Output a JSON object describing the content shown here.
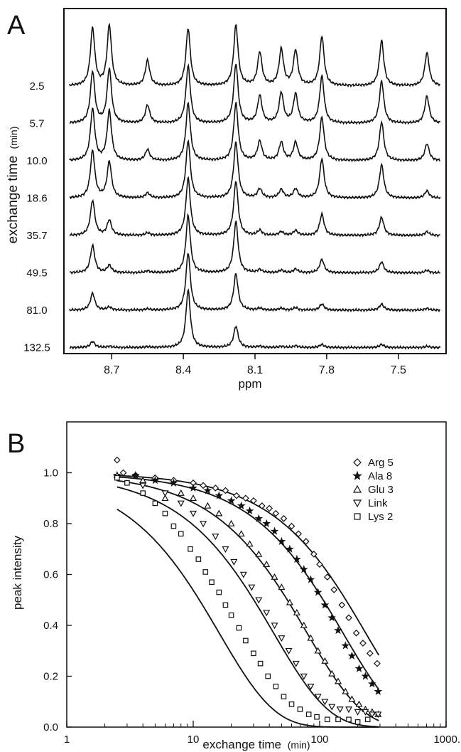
{
  "colors": {
    "ink": "#111111",
    "background": "#ffffff"
  },
  "chart_data": [
    {
      "panel_label": "A",
      "type": "line",
      "ylabel": "exchange time",
      "ylabel_unit": "(min)",
      "xlabel": "ppm",
      "x_reversed": true,
      "xlim": [
        8.9,
        7.3
      ],
      "xticks": [
        8.7,
        8.4,
        8.1,
        7.8,
        7.5
      ],
      "xtick_labels": [
        "8.7",
        "8.4",
        "8.1",
        "7.8",
        "7.5"
      ],
      "spectra_labels": [
        "2.5",
        "5.7",
        "10.0",
        "18.6",
        "35.7",
        "49.5",
        "81.0",
        "132.5"
      ],
      "peak_positions_ppm": [
        8.78,
        8.71,
        8.55,
        8.38,
        8.18,
        8.08,
        7.99,
        7.93,
        7.82,
        7.57,
        7.38
      ],
      "peak_heights": [
        [
          0.95,
          1.0,
          0.42,
          0.95,
          1.0,
          0.55,
          0.6,
          0.58,
          0.82,
          0.75,
          0.55
        ],
        [
          0.85,
          0.9,
          0.3,
          0.95,
          0.98,
          0.45,
          0.5,
          0.48,
          0.78,
          0.7,
          0.45
        ],
        [
          0.85,
          0.82,
          0.18,
          0.95,
          0.95,
          0.32,
          0.3,
          0.3,
          0.72,
          0.64,
          0.28
        ],
        [
          0.78,
          0.6,
          0.08,
          0.95,
          0.92,
          0.15,
          0.14,
          0.15,
          0.65,
          0.55,
          0.12
        ],
        [
          0.58,
          0.25,
          0.04,
          0.95,
          0.9,
          0.08,
          0.06,
          0.08,
          0.35,
          0.3,
          0.06
        ],
        [
          0.45,
          0.12,
          0.03,
          0.95,
          0.85,
          0.05,
          0.04,
          0.06,
          0.22,
          0.18,
          0.04
        ],
        [
          0.28,
          0.05,
          0.02,
          0.95,
          0.6,
          0.03,
          0.03,
          0.04,
          0.1,
          0.1,
          0.03
        ],
        [
          0.1,
          0.02,
          0.01,
          0.95,
          0.35,
          0.02,
          0.02,
          0.03,
          0.05,
          0.05,
          0.02
        ]
      ]
    },
    {
      "panel_label": "B",
      "type": "scatter",
      "xlabel": "exchange time",
      "xlabel_unit": "(min)",
      "ylabel": "peak intensity",
      "x_scale": "log",
      "xlim": [
        1,
        1000
      ],
      "ylim": [
        0,
        1.2
      ],
      "xticks": [
        1,
        10,
        100,
        1000
      ],
      "xtick_labels": [
        "1",
        "10",
        "100",
        "1000."
      ],
      "yticks": [
        0,
        0.2,
        0.4,
        0.6,
        0.8,
        1.0
      ],
      "ytick_labels": [
        "0.0",
        "0.2",
        "0.4",
        "0.6",
        "0.8",
        "1.0"
      ],
      "legend_position": "top-right",
      "series": [
        {
          "name": "Arg 5",
          "marker": "diamond",
          "k": 0.0043,
          "points": [
            [
              2.5,
              1.05
            ],
            [
              2.8,
              1.0
            ],
            [
              3.5,
              0.99
            ],
            [
              5,
              0.98
            ],
            [
              7,
              0.97
            ],
            [
              10,
              0.96
            ],
            [
              12,
              0.95
            ],
            [
              15,
              0.94
            ],
            [
              18,
              0.93
            ],
            [
              22,
              0.91
            ],
            [
              26,
              0.9
            ],
            [
              30,
              0.89
            ],
            [
              35,
              0.87
            ],
            [
              40,
              0.86
            ],
            [
              45,
              0.84
            ],
            [
              52,
              0.82
            ],
            [
              60,
              0.79
            ],
            [
              68,
              0.76
            ],
            [
              78,
              0.73
            ],
            [
              90,
              0.68
            ],
            [
              100,
              0.64
            ],
            [
              115,
              0.59
            ],
            [
              130,
              0.54
            ],
            [
              150,
              0.48
            ],
            [
              170,
              0.43
            ],
            [
              195,
              0.37
            ],
            [
              220,
              0.33
            ],
            [
              250,
              0.29
            ],
            [
              285,
              0.25
            ]
          ]
        },
        {
          "name": "Ala 8",
          "marker": "star",
          "k": 0.0065,
          "points": [
            [
              2.5,
              0.99
            ],
            [
              3.5,
              0.99
            ],
            [
              5,
              0.97
            ],
            [
              7,
              0.96
            ],
            [
              10,
              0.94
            ],
            [
              13,
              0.93
            ],
            [
              16,
              0.91
            ],
            [
              20,
              0.89
            ],
            [
              24,
              0.87
            ],
            [
              28,
              0.85
            ],
            [
              33,
              0.82
            ],
            [
              38,
              0.8
            ],
            [
              44,
              0.77
            ],
            [
              50,
              0.73
            ],
            [
              58,
              0.7
            ],
            [
              66,
              0.66
            ],
            [
              75,
              0.62
            ],
            [
              85,
              0.58
            ],
            [
              97,
              0.53
            ],
            [
              110,
              0.48
            ],
            [
              125,
              0.43
            ],
            [
              140,
              0.38
            ],
            [
              160,
              0.32
            ],
            [
              180,
              0.28
            ],
            [
              205,
              0.23
            ],
            [
              230,
              0.2
            ],
            [
              260,
              0.17
            ],
            [
              290,
              0.14
            ]
          ]
        },
        {
          "name": "Glu 3",
          "marker": "triangle-up",
          "k": 0.0125,
          "points": [
            [
              2.5,
              0.99
            ],
            [
              4,
              0.97
            ],
            [
              6,
              0.9
            ],
            [
              8,
              0.92
            ],
            [
              10,
              0.9
            ],
            [
              13,
              0.87
            ],
            [
              16,
              0.84
            ],
            [
              20,
              0.8
            ],
            [
              24,
              0.76
            ],
            [
              28,
              0.72
            ],
            [
              33,
              0.68
            ],
            [
              38,
              0.64
            ],
            [
              44,
              0.59
            ],
            [
              50,
              0.55
            ],
            [
              58,
              0.49
            ],
            [
              66,
              0.45
            ],
            [
              75,
              0.4
            ],
            [
              85,
              0.35
            ],
            [
              97,
              0.3
            ],
            [
              110,
              0.26
            ],
            [
              125,
              0.21
            ],
            [
              140,
              0.18
            ],
            [
              160,
              0.14
            ],
            [
              180,
              0.11
            ],
            [
              205,
              0.09
            ],
            [
              230,
              0.07
            ],
            [
              260,
              0.06
            ],
            [
              290,
              0.05
            ]
          ]
        },
        {
          "name": "Link",
          "marker": "triangle-down",
          "k": 0.023,
          "points": [
            [
              2.5,
              0.98
            ],
            [
              4,
              0.95
            ],
            [
              6,
              0.92
            ],
            [
              8,
              0.88
            ],
            [
              10,
              0.84
            ],
            [
              12,
              0.8
            ],
            [
              15,
              0.75
            ],
            [
              18,
              0.7
            ],
            [
              21,
              0.65
            ],
            [
              25,
              0.6
            ],
            [
              29,
              0.55
            ],
            [
              33,
              0.5
            ],
            [
              38,
              0.45
            ],
            [
              44,
              0.4
            ],
            [
              50,
              0.35
            ],
            [
              57,
              0.3
            ],
            [
              65,
              0.25
            ],
            [
              75,
              0.2
            ],
            [
              85,
              0.16
            ],
            [
              97,
              0.12
            ],
            [
              110,
              0.1
            ],
            [
              125,
              0.08
            ],
            [
              145,
              0.07
            ],
            [
              170,
              0.07
            ],
            [
              200,
              0.06
            ],
            [
              230,
              0.06
            ],
            [
              260,
              0.05
            ],
            [
              290,
              0.05
            ]
          ]
        },
        {
          "name": "Lys 2",
          "marker": "square",
          "k": 0.062,
          "points": [
            [
              2.5,
              0.98
            ],
            [
              3,
              0.96
            ],
            [
              4,
              0.92
            ],
            [
              5,
              0.88
            ],
            [
              6,
              0.84
            ],
            [
              7,
              0.79
            ],
            [
              8,
              0.76
            ],
            [
              9.5,
              0.7
            ],
            [
              11,
              0.66
            ],
            [
              12.5,
              0.61
            ],
            [
              14,
              0.57
            ],
            [
              16,
              0.53
            ],
            [
              18,
              0.48
            ],
            [
              20,
              0.44
            ],
            [
              23,
              0.39
            ],
            [
              26,
              0.34
            ],
            [
              30,
              0.29
            ],
            [
              34,
              0.25
            ],
            [
              39,
              0.2
            ],
            [
              45,
              0.16
            ],
            [
              52,
              0.12
            ],
            [
              60,
              0.09
            ],
            [
              70,
              0.07
            ],
            [
              82,
              0.05
            ],
            [
              95,
              0.04
            ],
            [
              115,
              0.03
            ],
            [
              140,
              0.03
            ],
            [
              170,
              0.03
            ],
            [
              200,
              0.02
            ],
            [
              240,
              0.03
            ]
          ]
        }
      ]
    }
  ]
}
